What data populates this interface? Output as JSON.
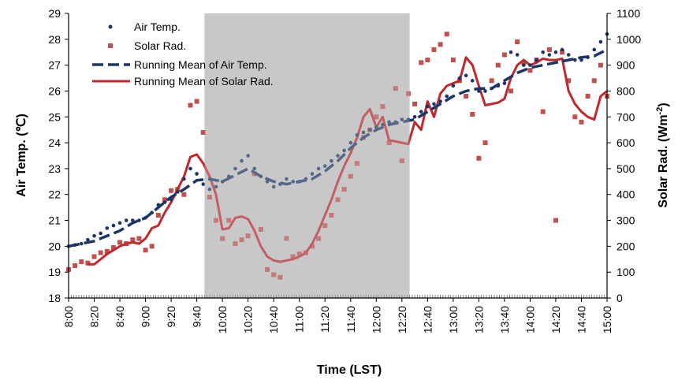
{
  "colors": {
    "air_temp": "#1a3566",
    "solar_rad_points": "#c0504d",
    "running_mean_air": "#1a3566",
    "running_mean_solar": "#c0282d",
    "shade": "#c8c8c8",
    "axis": "#000000"
  },
  "chart_data": {
    "type": "line",
    "xlabel": "Time (LST)",
    "ylabel_left": "Air Temp. (℃)",
    "ylabel_right_main": "Solar Rad. (Wm",
    "ylabel_right_sup": "-2",
    "ylabel_right_end": ")",
    "left_ylim": [
      18,
      29
    ],
    "right_ylim": [
      0,
      1100
    ],
    "left_ticks": [
      "18",
      "19",
      "20",
      "21",
      "22",
      "23",
      "24",
      "25",
      "26",
      "27",
      "28",
      "29"
    ],
    "right_ticks": [
      "0",
      "100",
      "200",
      "300",
      "400",
      "500",
      "600",
      "700",
      "800",
      "900",
      "1000",
      "1100"
    ],
    "x_range_minutes": [
      480,
      900
    ],
    "x_ticks": [
      "8:00",
      "8:20",
      "8:40",
      "9:00",
      "9:20",
      "9:40",
      "10:00",
      "10:20",
      "10:40",
      "11:00",
      "11:20",
      "11:40",
      "12:00",
      "12:20",
      "12:40",
      "13:00",
      "13:20",
      "13:40",
      "14:00",
      "14:20",
      "14:40",
      "15:00"
    ],
    "shaded_interval": [
      "9:46",
      "12:26"
    ],
    "grid": false,
    "legend_position": "top-left",
    "legend": [
      "Air Temp.",
      "Solar Rad.",
      "Running Mean of Air Temp.",
      "Running Mean of Solar Rad."
    ],
    "series": [
      {
        "name": "Air Temp.",
        "axis": "left",
        "style": "dots",
        "x": [
          "8:00",
          "8:05",
          "8:10",
          "8:15",
          "8:20",
          "8:25",
          "8:30",
          "8:35",
          "8:40",
          "8:45",
          "8:50",
          "8:55",
          "9:00",
          "9:05",
          "9:10",
          "9:15",
          "9:20",
          "9:25",
          "9:30",
          "9:35",
          "9:40",
          "9:45",
          "9:50",
          "9:55",
          "10:00",
          "10:05",
          "10:10",
          "10:15",
          "10:20",
          "10:25",
          "10:30",
          "10:35",
          "10:40",
          "10:45",
          "10:50",
          "10:55",
          "11:00",
          "11:05",
          "11:10",
          "11:15",
          "11:20",
          "11:25",
          "11:30",
          "11:35",
          "11:40",
          "11:45",
          "11:50",
          "11:55",
          "12:00",
          "12:05",
          "12:10",
          "12:15",
          "12:20",
          "12:25",
          "12:30",
          "12:35",
          "12:40",
          "12:45",
          "12:50",
          "12:55",
          "13:00",
          "13:05",
          "13:10",
          "13:15",
          "13:20",
          "13:25",
          "13:30",
          "13:35",
          "13:40",
          "13:45",
          "13:50",
          "13:55",
          "14:00",
          "14:05",
          "14:10",
          "14:15",
          "14:20",
          "14:25",
          "14:30",
          "14:35",
          "14:40",
          "14:45",
          "14:50",
          "14:55",
          "15:00"
        ],
        "values": [
          20.0,
          20.05,
          20.1,
          20.25,
          20.4,
          20.5,
          20.7,
          20.8,
          20.9,
          21.0,
          21.0,
          21.0,
          21.1,
          21.3,
          21.6,
          21.7,
          21.8,
          22.1,
          22.6,
          23.0,
          22.8,
          22.4,
          22.2,
          22.3,
          22.5,
          22.7,
          23.0,
          23.3,
          23.5,
          23.0,
          22.7,
          22.5,
          22.3,
          22.4,
          22.6,
          22.5,
          22.5,
          22.6,
          22.8,
          23.0,
          23.1,
          23.3,
          23.5,
          23.7,
          24.0,
          24.3,
          24.4,
          24.5,
          24.6,
          24.7,
          24.8,
          24.8,
          24.9,
          24.9,
          25.0,
          25.2,
          25.4,
          25.5,
          25.6,
          25.8,
          26.2,
          26.5,
          26.6,
          26.4,
          26.0,
          26.0,
          26.1,
          26.2,
          26.3,
          27.5,
          27.4,
          27.0,
          27.0,
          27.2,
          27.5,
          27.4,
          27.5,
          27.6,
          27.4,
          27.2,
          27.2,
          27.3,
          27.6,
          27.9,
          28.2
        ]
      },
      {
        "name": "Solar Rad.",
        "axis": "right",
        "style": "squares",
        "x": [
          "8:00",
          "8:05",
          "8:10",
          "8:15",
          "8:20",
          "8:25",
          "8:30",
          "8:35",
          "8:40",
          "8:45",
          "8:50",
          "8:55",
          "9:00",
          "9:05",
          "9:10",
          "9:15",
          "9:20",
          "9:25",
          "9:30",
          "9:35",
          "9:40",
          "9:45",
          "9:50",
          "9:55",
          "10:00",
          "10:05",
          "10:10",
          "10:15",
          "10:20",
          "10:25",
          "10:30",
          "10:35",
          "10:40",
          "10:45",
          "10:50",
          "10:55",
          "11:00",
          "11:05",
          "11:10",
          "11:15",
          "11:20",
          "11:25",
          "11:30",
          "11:35",
          "11:40",
          "11:45",
          "11:50",
          "11:55",
          "12:00",
          "12:05",
          "12:10",
          "12:15",
          "12:20",
          "12:25",
          "12:30",
          "12:35",
          "12:40",
          "12:45",
          "12:50",
          "12:55",
          "13:00",
          "13:05",
          "13:10",
          "13:15",
          "13:20",
          "13:25",
          "13:30",
          "13:35",
          "13:40",
          "13:45",
          "13:50",
          "13:55",
          "14:00",
          "14:05",
          "14:10",
          "14:15",
          "14:20",
          "14:25",
          "14:30",
          "14:35",
          "14:40",
          "14:45",
          "14:50",
          "14:55",
          "15:00"
        ],
        "values": [
          110,
          125,
          140,
          135,
          160,
          175,
          180,
          195,
          215,
          210,
          225,
          230,
          185,
          200,
          320,
          380,
          415,
          420,
          400,
          745,
          760,
          640,
          390,
          300,
          230,
          300,
          210,
          225,
          240,
          480,
          265,
          110,
          90,
          80,
          230,
          160,
          170,
          175,
          200,
          230,
          280,
          320,
          380,
          420,
          470,
          520,
          620,
          650,
          700,
          740,
          600,
          810,
          530,
          790,
          750,
          910,
          920,
          960,
          980,
          1020,
          920,
          840,
          780,
          710,
          540,
          600,
          840,
          900,
          940,
          800,
          990,
          910,
          880,
          920,
          720,
          960,
          300,
          950,
          840,
          700,
          680,
          780,
          840,
          900,
          780
        ]
      },
      {
        "name": "Running Mean of Air Temp.",
        "axis": "left",
        "style": "dashed",
        "x": [
          "8:00",
          "8:10",
          "8:20",
          "8:30",
          "8:40",
          "8:50",
          "9:00",
          "9:10",
          "9:20",
          "9:30",
          "9:40",
          "9:50",
          "10:00",
          "10:10",
          "10:20",
          "10:30",
          "10:40",
          "10:50",
          "11:00",
          "11:10",
          "11:20",
          "11:30",
          "11:40",
          "11:50",
          "12:00",
          "12:10",
          "12:20",
          "12:30",
          "12:40",
          "12:50",
          "13:00",
          "13:10",
          "13:20",
          "13:30",
          "13:40",
          "13:50",
          "14:00",
          "14:10",
          "14:20",
          "14:30",
          "14:40",
          "14:50",
          "15:00"
        ],
        "values": [
          20.0,
          20.1,
          20.2,
          20.4,
          20.6,
          20.9,
          21.1,
          21.5,
          21.9,
          22.2,
          22.55,
          22.6,
          22.5,
          22.75,
          23.0,
          22.7,
          22.5,
          22.4,
          22.5,
          22.6,
          22.9,
          23.3,
          23.8,
          24.2,
          24.5,
          24.7,
          24.8,
          24.9,
          25.2,
          25.5,
          25.8,
          26.0,
          26.1,
          26.1,
          26.4,
          26.7,
          26.9,
          27.0,
          27.1,
          27.2,
          27.3,
          27.35,
          27.6
        ]
      },
      {
        "name": "Running Mean of Solar Rad.",
        "axis": "right",
        "style": "solid",
        "x": [
          "8:15",
          "8:20",
          "8:25",
          "8:30",
          "8:35",
          "8:40",
          "8:45",
          "8:50",
          "8:55",
          "9:00",
          "9:05",
          "9:10",
          "9:15",
          "9:20",
          "9:25",
          "9:30",
          "9:35",
          "9:40",
          "9:45",
          "9:50",
          "9:55",
          "10:00",
          "10:05",
          "10:10",
          "10:15",
          "10:20",
          "10:25",
          "10:30",
          "10:35",
          "10:40",
          "10:45",
          "10:50",
          "10:55",
          "11:00",
          "11:05",
          "11:10",
          "11:15",
          "11:20",
          "11:25",
          "11:30",
          "11:35",
          "11:40",
          "11:45",
          "11:50",
          "11:55",
          "12:00",
          "12:05",
          "12:10",
          "12:15",
          "12:20",
          "12:25",
          "12:30",
          "12:35",
          "12:40",
          "12:45",
          "12:50",
          "12:55",
          "13:00",
          "13:05",
          "13:10",
          "13:15",
          "13:20",
          "13:25",
          "13:30",
          "13:35",
          "13:40",
          "13:45",
          "13:50",
          "13:55",
          "14:00",
          "14:05",
          "14:10",
          "14:15",
          "14:20",
          "14:25",
          "14:30",
          "14:35",
          "14:40",
          "14:45",
          "14:50",
          "14:55",
          "15:00"
        ],
        "values": [
          130,
          130,
          150,
          170,
          185,
          200,
          210,
          215,
          210,
          230,
          270,
          280,
          330,
          370,
          420,
          470,
          545,
          555,
          520,
          470,
          400,
          265,
          270,
          310,
          315,
          305,
          260,
          200,
          160,
          145,
          140,
          145,
          150,
          160,
          175,
          210,
          260,
          320,
          380,
          450,
          510,
          560,
          620,
          700,
          730,
          660,
          700,
          610,
          605,
          600,
          595,
          680,
          650,
          760,
          700,
          790,
          820,
          830,
          840,
          930,
          900,
          820,
          745,
          750,
          755,
          770,
          850,
          900,
          920,
          900,
          910,
          925,
          920,
          920,
          925,
          800,
          750,
          720,
          700,
          690,
          780,
          800
        ]
      }
    ]
  }
}
